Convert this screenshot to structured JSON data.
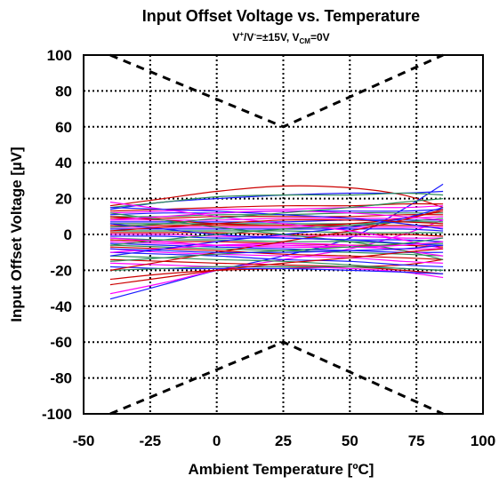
{
  "chart_data": {
    "type": "line",
    "title": "Input Offset Voltage vs. Temperature",
    "subtitle": {
      "v": "V",
      "plus": "+",
      "slash": "/V",
      "minus": "-",
      "rest1": "=±15V, V",
      "cm": "CM",
      "rest2": "=0V"
    },
    "xlabel": "Ambient Temperature [ºC]",
    "ylabel": "Input Offset Voltage [µV]",
    "xlim": [
      -50,
      100
    ],
    "ylim": [
      -100,
      100
    ],
    "x_ticks": [
      -50,
      -25,
      0,
      25,
      50,
      75,
      100
    ],
    "y_ticks": [
      -100,
      -80,
      -60,
      -40,
      -20,
      0,
      20,
      40,
      60,
      80,
      100
    ],
    "x_tick_labels": [
      "-50",
      "-25",
      "0",
      "25",
      "50",
      "75",
      "100"
    ],
    "y_tick_labels": [
      "-100",
      "-80",
      "-60",
      "-40",
      "-20",
      "0",
      "20",
      "40",
      "60",
      "80",
      "100"
    ],
    "grid": true,
    "limit_lines": [
      {
        "x": [
          -40,
          25,
          85
        ],
        "y": [
          100,
          60,
          100
        ]
      },
      {
        "x": [
          -40,
          25,
          85
        ],
        "y": [
          -100,
          -60,
          -100
        ]
      }
    ],
    "sample_curves": {
      "x": [
        -40,
        -20,
        0,
        25,
        50,
        70,
        85
      ],
      "curves": [
        {
          "color": "#cc0000",
          "y": [
            16,
            20,
            24,
            27,
            26,
            22,
            15
          ]
        },
        {
          "color": "#cc0000",
          "y": [
            -25,
            -22,
            -20,
            -19,
            -18,
            -17,
            -14
          ]
        },
        {
          "color": "#1a1aff",
          "y": [
            -36,
            -28,
            -20,
            -12,
            -2,
            14,
            28
          ]
        },
        {
          "color": "#ff00ff",
          "y": [
            -33,
            -27,
            -20,
            -14,
            -8,
            0,
            8
          ]
        },
        {
          "color": "#1a1aff",
          "y": [
            14,
            18,
            20,
            22,
            23,
            23,
            24
          ]
        },
        {
          "color": "#2e8b57",
          "y": [
            15,
            18,
            21,
            22,
            22,
            23,
            22
          ]
        },
        {
          "color": "#cc0000",
          "y": [
            13,
            14,
            15,
            16,
            16,
            17,
            17
          ]
        },
        {
          "color": "#ff00ff",
          "y": [
            12,
            13,
            14,
            14,
            15,
            15,
            16
          ]
        },
        {
          "color": "#1a1aff",
          "y": [
            11,
            12,
            12,
            13,
            13,
            13,
            14
          ]
        },
        {
          "color": "#2e8b57",
          "y": [
            10,
            10,
            11,
            11,
            12,
            12,
            12
          ]
        },
        {
          "color": "#cc0000",
          "y": [
            9,
            9,
            10,
            10,
            10,
            11,
            11
          ]
        },
        {
          "color": "#ff00ff",
          "y": [
            8,
            8,
            8,
            9,
            9,
            9,
            10
          ]
        },
        {
          "color": "#1a1aff",
          "y": [
            7,
            7,
            7,
            7,
            8,
            8,
            8
          ]
        },
        {
          "color": "#2e8b57",
          "y": [
            6,
            6,
            6,
            6,
            6,
            7,
            7
          ]
        },
        {
          "color": "#cc0000",
          "y": [
            5,
            5,
            5,
            5,
            5,
            5,
            5
          ]
        },
        {
          "color": "#ff00ff",
          "y": [
            4,
            4,
            4,
            4,
            4,
            4,
            4
          ]
        },
        {
          "color": "#1a1aff",
          "y": [
            3,
            3,
            3,
            3,
            3,
            3,
            2
          ]
        },
        {
          "color": "#2e8b57",
          "y": [
            2,
            2,
            2,
            2,
            1,
            1,
            1
          ]
        },
        {
          "color": "#cc0000",
          "y": [
            1,
            1,
            1,
            0,
            0,
            0,
            -1
          ]
        },
        {
          "color": "#ff00ff",
          "y": [
            0,
            0,
            -1,
            -1,
            -1,
            -2,
            -2
          ]
        },
        {
          "color": "#1a1aff",
          "y": [
            -1,
            -1,
            -2,
            -2,
            -3,
            -3,
            -4
          ]
        },
        {
          "color": "#2e8b57",
          "y": [
            -2,
            -3,
            -3,
            -4,
            -4,
            -5,
            -5
          ]
        },
        {
          "color": "#cc0000",
          "y": [
            -3,
            -4,
            -4,
            -5,
            -6,
            -6,
            -7
          ]
        },
        {
          "color": "#ff00ff",
          "y": [
            -4,
            -5,
            -6,
            -6,
            -7,
            -8,
            -8
          ]
        },
        {
          "color": "#1a1aff",
          "y": [
            -5,
            -6,
            -7,
            -8,
            -9,
            -10,
            -10
          ]
        },
        {
          "color": "#2e8b57",
          "y": [
            -6,
            -7,
            -8,
            -9,
            -10,
            -11,
            -12
          ]
        },
        {
          "color": "#cc0000",
          "y": [
            -7,
            -8,
            -9,
            -11,
            -12,
            -13,
            -14
          ]
        },
        {
          "color": "#ff00ff",
          "y": [
            -8,
            -10,
            -11,
            -12,
            -13,
            -15,
            -16
          ]
        },
        {
          "color": "#1a1aff",
          "y": [
            -10,
            -11,
            -12,
            -14,
            -15,
            -17,
            -18
          ]
        },
        {
          "color": "#2e8b57",
          "y": [
            -12,
            -13,
            -14,
            -15,
            -17,
            -19,
            -20
          ]
        },
        {
          "color": "#cc0000",
          "y": [
            -14,
            -15,
            -16,
            -17,
            -18,
            -20,
            -22
          ]
        },
        {
          "color": "#ff00ff",
          "y": [
            -16,
            -17,
            -18,
            -18,
            -19,
            -21,
            -24
          ]
        },
        {
          "color": "#1a1aff",
          "y": [
            -18,
            -19,
            -19,
            -19,
            -20,
            -21,
            -22
          ]
        },
        {
          "color": "#2e8b57",
          "y": [
            -20,
            -19,
            -18,
            -18,
            -18,
            -19,
            -20
          ]
        },
        {
          "color": "#cc0000",
          "y": [
            10,
            8,
            6,
            5,
            6,
            9,
            13
          ]
        },
        {
          "color": "#ff00ff",
          "y": [
            -10,
            -8,
            -6,
            -5,
            -6,
            -9,
            -12
          ]
        },
        {
          "color": "#1a1aff",
          "y": [
            -12,
            -8,
            -4,
            0,
            4,
            9,
            15
          ]
        },
        {
          "color": "#2e8b57",
          "y": [
            12,
            8,
            4,
            0,
            -4,
            -9,
            -14
          ]
        },
        {
          "color": "#cc0000",
          "y": [
            -20,
            -15,
            -10,
            -4,
            2,
            8,
            14
          ]
        },
        {
          "color": "#ff00ff",
          "y": [
            18,
            14,
            10,
            6,
            2,
            -3,
            -8
          ]
        },
        {
          "color": "#1a1aff",
          "y": [
            6,
            3,
            0,
            -2,
            -3,
            -5,
            -6
          ]
        },
        {
          "color": "#2e8b57",
          "y": [
            -6,
            -3,
            0,
            3,
            5,
            7,
            9
          ]
        },
        {
          "color": "#cc0000",
          "y": [
            2,
            4,
            6,
            8,
            8,
            7,
            6
          ]
        },
        {
          "color": "#ff00ff",
          "y": [
            -2,
            -4,
            -6,
            -7,
            -7,
            -6,
            -4
          ]
        },
        {
          "color": "#1a1aff",
          "y": [
            15,
            14,
            13,
            11,
            9,
            6,
            3
          ]
        },
        {
          "color": "#2e8b57",
          "y": [
            -15,
            -13,
            -11,
            -9,
            -7,
            -5,
            -2
          ]
        },
        {
          "color": "#cc0000",
          "y": [
            -28,
            -24,
            -20,
            -16,
            -13,
            -10,
            -8
          ]
        },
        {
          "color": "#ff00ff",
          "y": [
            8,
            10,
            12,
            13,
            12,
            10,
            8
          ]
        },
        {
          "color": "#1a1aff",
          "y": [
            -8,
            -9,
            -10,
            -10,
            -9,
            -8,
            -6
          ]
        },
        {
          "color": "#2e8b57",
          "y": [
            4,
            6,
            9,
            12,
            15,
            18,
            20
          ]
        }
      ]
    }
  }
}
